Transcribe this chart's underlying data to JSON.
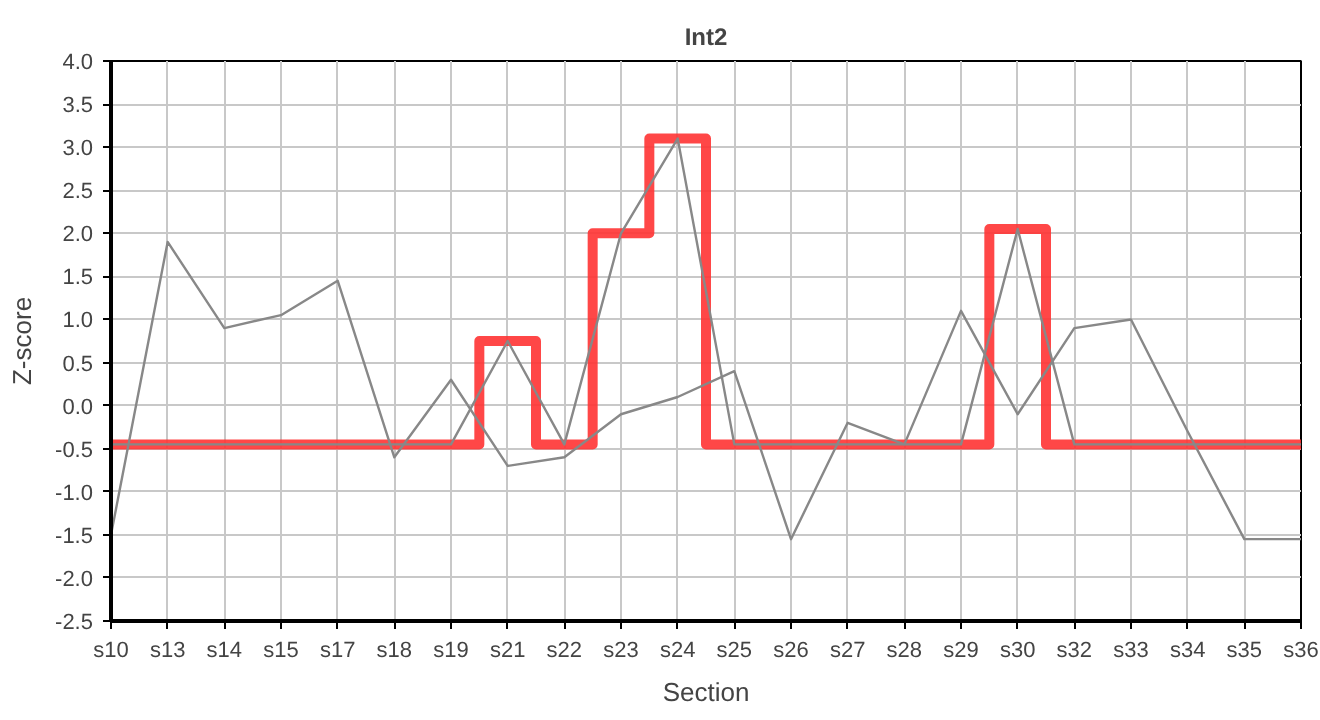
{
  "chart_data": {
    "type": "line",
    "title": "Int2",
    "xlabel": "Section",
    "ylabel": "Z-score",
    "categories": [
      "s10",
      "s13",
      "s14",
      "s15",
      "s17",
      "s18",
      "s19",
      "s21",
      "s22",
      "s23",
      "s24",
      "s25",
      "s26",
      "s27",
      "s28",
      "s29",
      "s30",
      "s32",
      "s33",
      "s34",
      "s35",
      "s36"
    ],
    "series": [
      {
        "type": "step",
        "color": "#ff3333",
        "values": [
          -0.45,
          -0.45,
          -0.45,
          -0.45,
          -0.45,
          -0.45,
          -0.45,
          0.75,
          -0.45,
          2.0,
          3.1,
          -0.45,
          -0.45,
          -0.45,
          -0.45,
          -0.45,
          2.05,
          -0.45,
          -0.45,
          -0.45,
          -0.45,
          -0.45
        ]
      },
      {
        "color": "#888888",
        "values": [
          -1.5,
          1.9,
          0.9,
          1.05,
          1.45,
          -0.6,
          0.3,
          -0.7,
          -0.6,
          -0.1,
          0.1,
          0.4,
          -1.55,
          -0.2,
          -0.45,
          1.1,
          -0.1,
          0.9,
          1.0,
          -0.3,
          -1.55,
          -1.55
        ]
      },
      {
        "color": "#888888",
        "values": [
          -0.45,
          -0.45,
          -0.45,
          -0.45,
          -0.45,
          -0.45,
          -0.45,
          0.75,
          -0.45,
          2.0,
          3.1,
          -0.45,
          -0.45,
          -0.45,
          -0.45,
          -0.45,
          2.05,
          -0.45,
          -0.45,
          -0.45,
          -0.45,
          -0.45
        ]
      }
    ],
    "ylim": [
      -2.5,
      4.0
    ],
    "yticks": [
      {
        "value": -2.5,
        "label": "-2.5"
      },
      {
        "value": -2.0,
        "label": "-2.0"
      },
      {
        "value": -1.5,
        "label": "-1.5"
      },
      {
        "value": -1.0,
        "label": "-1.0"
      },
      {
        "value": -0.5,
        "label": "-0.5"
      },
      {
        "value": 0.0,
        "label": "0.0"
      },
      {
        "value": 0.5,
        "label": "0.5"
      },
      {
        "value": 1.0,
        "label": "1.0"
      },
      {
        "value": 1.5,
        "label": "1.5"
      },
      {
        "value": 2.0,
        "label": "2.0"
      },
      {
        "value": 2.5,
        "label": "2.5"
      },
      {
        "value": 3.0,
        "label": "3.0"
      },
      {
        "value": 3.5,
        "label": "3.5"
      },
      {
        "value": 4.0,
        "label": "4.0"
      }
    ],
    "grid": true,
    "marker": "none",
    "line_style": "solid"
  }
}
